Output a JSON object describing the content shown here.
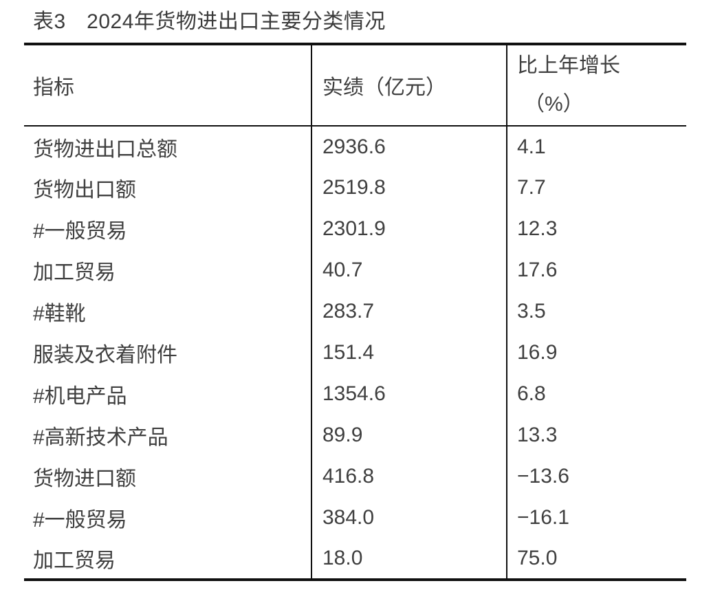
{
  "page": {
    "title": "表3　2024年货物进出口主要分类情况",
    "background_color": "#ffffff",
    "text_color": "#3f3f3f",
    "border_color": "#101010"
  },
  "table": {
    "header": {
      "indicator": "指标",
      "value": "实绩（亿元）",
      "growth_line1": "比上年增长",
      "growth_line2": "（%）"
    },
    "rows": [
      {
        "indicator": "货物进出口总额",
        "value": "2936.6",
        "growth": "4.1"
      },
      {
        "indicator": "货物出口额",
        "value": "2519.8",
        "growth": "7.7"
      },
      {
        "indicator": "#一般贸易",
        "value": "2301.9",
        "growth": "12.3"
      },
      {
        "indicator": "加工贸易",
        "value": "40.7",
        "growth": "17.6"
      },
      {
        "indicator": "#鞋靴",
        "value": "283.7",
        "growth": "3.5"
      },
      {
        "indicator": "服装及衣着附件",
        "value": "151.4",
        "growth": "16.9"
      },
      {
        "indicator": "#机电产品",
        "value": "1354.6",
        "growth": "6.8"
      },
      {
        "indicator": "#高新技术产品",
        "value": "89.9",
        "growth": "13.3"
      },
      {
        "indicator": "货物进口额",
        "value": "416.8",
        "growth": "−13.6"
      },
      {
        "indicator": "#一般贸易",
        "value": "384.0",
        "growth": "−16.1"
      },
      {
        "indicator": "加工贸易",
        "value": "18.0",
        "growth": "75.0"
      }
    ]
  },
  "chart_data": {
    "type": "table",
    "title": "表3　2024年货物进出口主要分类情况",
    "columns": [
      "指标",
      "实绩（亿元）",
      "比上年增长（%）"
    ],
    "rows": [
      [
        "货物进出口总额",
        2936.6,
        4.1
      ],
      [
        "货物出口额",
        2519.8,
        7.7
      ],
      [
        "#一般贸易",
        2301.9,
        12.3
      ],
      [
        "加工贸易",
        40.7,
        17.6
      ],
      [
        "#鞋靴",
        283.7,
        3.5
      ],
      [
        "服装及衣着附件",
        151.4,
        16.9
      ],
      [
        "#机电产品",
        1354.6,
        6.8
      ],
      [
        "#高新技术产品",
        89.9,
        13.3
      ],
      [
        "货物进口额",
        416.8,
        -13.6
      ],
      [
        "#一般贸易",
        384.0,
        -16.1
      ],
      [
        "加工贸易",
        18.0,
        75.0
      ]
    ]
  }
}
